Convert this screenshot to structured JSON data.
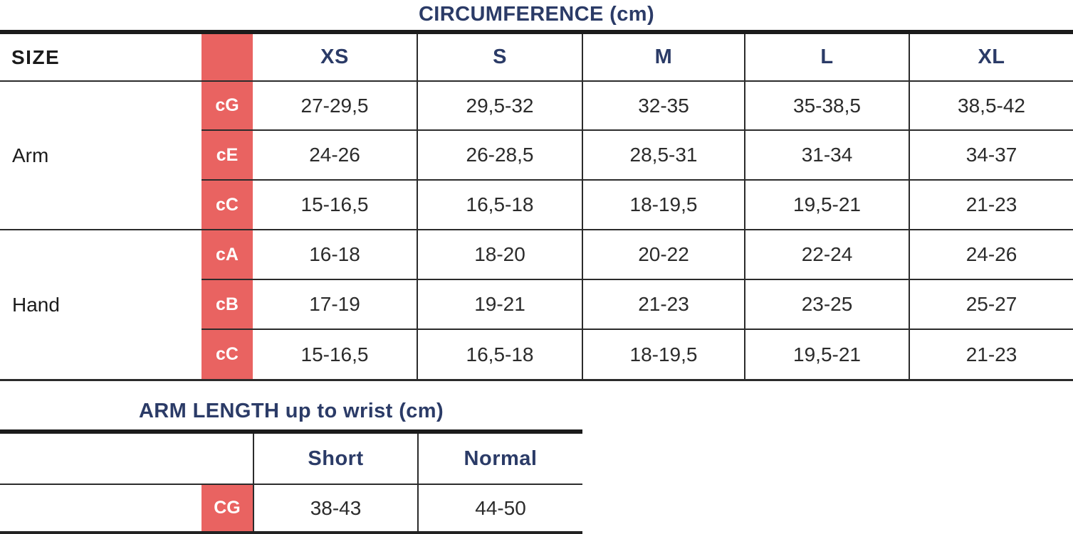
{
  "colors": {
    "accent_red": "#E96361",
    "navy": "#2B3B67",
    "text_dark": "#2B2B2B",
    "line": "#2B2B2B"
  },
  "chart_data": [
    {
      "type": "table",
      "title": "CIRCUMFERENCE (cm)",
      "size_label": "SIZE",
      "col_headers": [
        "XS",
        "S",
        "M",
        "L",
        "XL"
      ],
      "row_groups": [
        {
          "label": "Arm",
          "rows": [
            {
              "code": "cG",
              "values": [
                "27-29,5",
                "29,5-32",
                "32-35",
                "35-38,5",
                "38,5-42"
              ]
            },
            {
              "code": "cE",
              "values": [
                "24-26",
                "26-28,5",
                "28,5-31",
                "31-34",
                "34-37"
              ]
            },
            {
              "code": "cC",
              "values": [
                "15-16,5",
                "16,5-18",
                "18-19,5",
                "19,5-21",
                "21-23"
              ]
            }
          ]
        },
        {
          "label": "Hand",
          "rows": [
            {
              "code": "cA",
              "values": [
                "16-18",
                "18-20",
                "20-22",
                "22-24",
                "24-26"
              ]
            },
            {
              "code": "cB",
              "values": [
                "17-19",
                "19-21",
                "21-23",
                "23-25",
                "25-27"
              ]
            },
            {
              "code": "cC",
              "values": [
                "15-16,5",
                "16,5-18",
                "18-19,5",
                "19,5-21",
                "21-23"
              ]
            }
          ]
        }
      ]
    },
    {
      "type": "table",
      "title": "ARM LENGTH up to wrist (cm)",
      "col_headers": [
        "Short",
        "Normal"
      ],
      "rows": [
        {
          "code": "CG",
          "values": [
            "38-43",
            "44-50"
          ]
        }
      ]
    }
  ]
}
